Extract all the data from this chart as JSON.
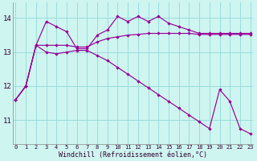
{
  "x": [
    0,
    1,
    2,
    3,
    4,
    5,
    6,
    7,
    8,
    9,
    10,
    11,
    12,
    13,
    14,
    15,
    16,
    17,
    18,
    19,
    20,
    21,
    22,
    23
  ],
  "line1": [
    11.6,
    12.0,
    13.2,
    13.2,
    13.2,
    13.2,
    13.15,
    13.15,
    13.3,
    13.4,
    13.45,
    13.5,
    13.52,
    13.55,
    13.55,
    13.55,
    13.55,
    13.55,
    13.52,
    13.52,
    13.52,
    13.52,
    13.52,
    13.52
  ],
  "line2": [
    11.6,
    12.0,
    13.2,
    13.9,
    13.75,
    13.6,
    13.1,
    13.1,
    13.5,
    13.65,
    14.05,
    13.9,
    14.05,
    13.9,
    14.05,
    13.85,
    13.75,
    13.65,
    13.55,
    13.55,
    13.55,
    13.55,
    13.55,
    13.55
  ],
  "line3": [
    11.6,
    12.0,
    13.2,
    13.0,
    12.95,
    13.0,
    13.05,
    13.05,
    12.9,
    12.75,
    12.55,
    12.35,
    12.15,
    11.95,
    11.75,
    11.55,
    11.35,
    11.15,
    10.95,
    10.75,
    11.9,
    11.55,
    10.75,
    10.6
  ],
  "bg_color": "#cef5f0",
  "line_color": "#990099",
  "grid_color": "#99dddd",
  "xlabel": "Windchill (Refroidissement éolien,°C)",
  "yticks": [
    11,
    12,
    13,
    14
  ],
  "xticks": [
    0,
    1,
    2,
    3,
    4,
    5,
    6,
    7,
    8,
    9,
    10,
    11,
    12,
    13,
    14,
    15,
    16,
    17,
    18,
    19,
    20,
    21,
    22,
    23
  ],
  "ylim": [
    10.3,
    14.45
  ],
  "xlim": [
    -0.3,
    23.3
  ]
}
